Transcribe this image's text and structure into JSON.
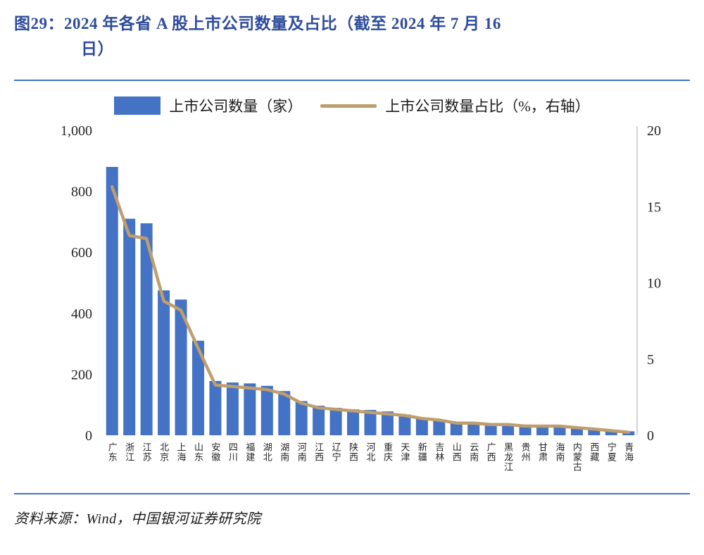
{
  "title": {
    "line1": "图29：2024 年各省 A 股上市公司数量及占比（截至 2024 年 7 月 16",
    "line2": "日）"
  },
  "legend": {
    "bar_label": "上市公司数量（家）",
    "line_label": "上市公司数量占比（%，右轴）"
  },
  "source": "资料来源：Wind，中国银河证券研究院",
  "colors": {
    "bar": "#4472C4",
    "line": "#BF9E6D",
    "title": "#2E4C9C",
    "rule": "#4472C4",
    "axis_text": "#262626",
    "axis_line": "#C6C6C6"
  },
  "chart_data": {
    "type": "bar+line",
    "title": "2024 年各省 A 股上市公司数量及占比（截至 2024 年 7 月 16 日）",
    "categories": [
      "广东",
      "浙江",
      "江苏",
      "北京",
      "上海",
      "山东",
      "安徽",
      "四川",
      "福建",
      "湖北",
      "湖南",
      "河南",
      "江西",
      "辽宁",
      "陕西",
      "河北",
      "重庆",
      "天津",
      "新疆",
      "吉林",
      "山西",
      "云南",
      "广西",
      "黑龙江",
      "贵州",
      "甘肃",
      "海南",
      "内蒙古",
      "西藏",
      "宁夏",
      "青海"
    ],
    "series": [
      {
        "name": "上市公司数量（家）",
        "type": "bar",
        "axis": "left",
        "values": [
          880,
          710,
          695,
          475,
          445,
          310,
          178,
          173,
          170,
          162,
          145,
          112,
          97,
          90,
          85,
          83,
          78,
          68,
          58,
          52,
          42,
          41,
          40,
          38,
          35,
          33,
          30,
          26,
          22,
          16,
          13
        ]
      },
      {
        "name": "上市公司数量占比（%，右轴）",
        "type": "line",
        "axis": "right",
        "values": [
          16.3,
          13.1,
          12.9,
          8.8,
          8.2,
          5.7,
          3.3,
          3.2,
          3.1,
          3.0,
          2.7,
          2.1,
          1.8,
          1.7,
          1.6,
          1.5,
          1.4,
          1.3,
          1.1,
          1.0,
          0.8,
          0.8,
          0.7,
          0.7,
          0.6,
          0.6,
          0.6,
          0.5,
          0.4,
          0.3,
          0.2
        ]
      }
    ],
    "left_axis": {
      "ticks": [
        0,
        200,
        400,
        600,
        800,
        1000
      ],
      "min": 0,
      "max": 1000
    },
    "right_axis": {
      "ticks": [
        0,
        5,
        10,
        15,
        20
      ],
      "min": 0,
      "max": 20
    },
    "grid": false,
    "legend_position": "top"
  }
}
